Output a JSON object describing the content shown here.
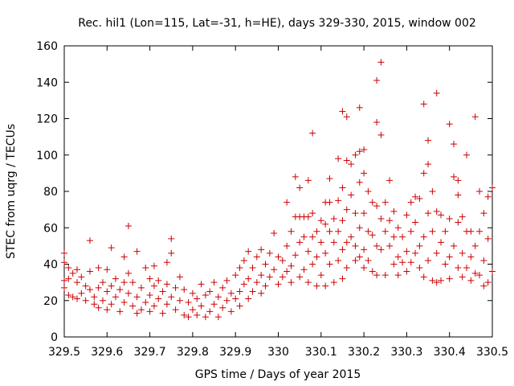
{
  "chart_data": {
    "type": "scatter",
    "title": "Rec. hil1 (Lon=115, Lat=-31, h=HE), days 329-330, 2015, window 002",
    "xlabel": "GPS time / Days of year 2015",
    "ylabel": "STEC from uqrg / TECUs",
    "xlim": [
      329.5,
      330.5
    ],
    "ylim": [
      0,
      160
    ],
    "xticks": [
      "329.5",
      "329.6",
      "329.7",
      "329.8",
      "329.9",
      "330",
      "330.1",
      "330.2",
      "330.3",
      "330.4",
      "330.5"
    ],
    "yticks": [
      "0",
      "20",
      "40",
      "60",
      "80",
      "100",
      "120",
      "140",
      "160"
    ],
    "grid": false,
    "legend": "none",
    "marker": "plus",
    "color": "#cc0000",
    "series": [
      {
        "points": [
          [
            329.5,
            46
          ],
          [
            329.5,
            41
          ],
          [
            329.5,
            31
          ],
          [
            329.5,
            27
          ],
          [
            329.51,
            38
          ],
          [
            329.51,
            32
          ],
          [
            329.51,
            23
          ],
          [
            329.52,
            35
          ],
          [
            329.52,
            22
          ],
          [
            329.53,
            37
          ],
          [
            329.53,
            30
          ],
          [
            329.53,
            21
          ],
          [
            329.54,
            33
          ],
          [
            329.54,
            24
          ],
          [
            329.55,
            28
          ],
          [
            329.55,
            20
          ],
          [
            329.56,
            53
          ],
          [
            329.56,
            36
          ],
          [
            329.56,
            26
          ],
          [
            329.57,
            22
          ],
          [
            329.57,
            18
          ],
          [
            329.58,
            38
          ],
          [
            329.58,
            27
          ],
          [
            329.58,
            16
          ],
          [
            329.59,
            30
          ],
          [
            329.59,
            20
          ],
          [
            329.6,
            37
          ],
          [
            329.6,
            25
          ],
          [
            329.6,
            15
          ],
          [
            329.61,
            49
          ],
          [
            329.61,
            28
          ],
          [
            329.61,
            18
          ],
          [
            329.62,
            32
          ],
          [
            329.62,
            22
          ],
          [
            329.63,
            26
          ],
          [
            329.63,
            14
          ],
          [
            329.64,
            44
          ],
          [
            329.64,
            30
          ],
          [
            329.64,
            19
          ],
          [
            329.65,
            61
          ],
          [
            329.65,
            35
          ],
          [
            329.65,
            24
          ],
          [
            329.66,
            30
          ],
          [
            329.66,
            17
          ],
          [
            329.67,
            47
          ],
          [
            329.67,
            22
          ],
          [
            329.67,
            13
          ],
          [
            329.68,
            27
          ],
          [
            329.68,
            15
          ],
          [
            329.69,
            38
          ],
          [
            329.69,
            19
          ],
          [
            329.7,
            32
          ],
          [
            329.7,
            23
          ],
          [
            329.7,
            14
          ],
          [
            329.71,
            39
          ],
          [
            329.71,
            28
          ],
          [
            329.71,
            17
          ],
          [
            329.72,
            31
          ],
          [
            329.72,
            21
          ],
          [
            329.73,
            25
          ],
          [
            329.73,
            13
          ],
          [
            329.74,
            41
          ],
          [
            329.74,
            29
          ],
          [
            329.74,
            18
          ],
          [
            329.75,
            54
          ],
          [
            329.75,
            46
          ],
          [
            329.75,
            22
          ],
          [
            329.76,
            27
          ],
          [
            329.76,
            15
          ],
          [
            329.77,
            33
          ],
          [
            329.77,
            20
          ],
          [
            329.78,
            26
          ],
          [
            329.78,
            12
          ],
          [
            329.79,
            19
          ],
          [
            329.79,
            11
          ],
          [
            329.8,
            24
          ],
          [
            329.8,
            15
          ],
          [
            329.81,
            21
          ],
          [
            329.81,
            12
          ],
          [
            329.82,
            29
          ],
          [
            329.82,
            17
          ],
          [
            329.83,
            23
          ],
          [
            329.83,
            11
          ],
          [
            329.84,
            25
          ],
          [
            329.84,
            14
          ],
          [
            329.85,
            30
          ],
          [
            329.85,
            18
          ],
          [
            329.86,
            22
          ],
          [
            329.86,
            11
          ],
          [
            329.87,
            27
          ],
          [
            329.87,
            16
          ],
          [
            329.88,
            31
          ],
          [
            329.88,
            20
          ],
          [
            329.89,
            24
          ],
          [
            329.89,
            14
          ],
          [
            329.9,
            34
          ],
          [
            329.9,
            21
          ],
          [
            329.91,
            38
          ],
          [
            329.91,
            25
          ],
          [
            329.91,
            17
          ],
          [
            329.92,
            42
          ],
          [
            329.92,
            29
          ],
          [
            329.93,
            47
          ],
          [
            329.93,
            32
          ],
          [
            329.93,
            21
          ],
          [
            329.94,
            38
          ],
          [
            329.94,
            25
          ],
          [
            329.95,
            44
          ],
          [
            329.95,
            30
          ],
          [
            329.96,
            48
          ],
          [
            329.96,
            34
          ],
          [
            329.96,
            24
          ],
          [
            329.97,
            40
          ],
          [
            329.97,
            28
          ],
          [
            329.98,
            46
          ],
          [
            329.98,
            33
          ],
          [
            329.99,
            57
          ],
          [
            329.99,
            37
          ],
          [
            330.0,
            44
          ],
          [
            330.0,
            29
          ],
          [
            330.01,
            42
          ],
          [
            330.01,
            33
          ],
          [
            330.02,
            74
          ],
          [
            330.02,
            50
          ],
          [
            330.02,
            36
          ],
          [
            330.03,
            58
          ],
          [
            330.03,
            39
          ],
          [
            330.03,
            30
          ],
          [
            330.04,
            88
          ],
          [
            330.04,
            66
          ],
          [
            330.04,
            45
          ],
          [
            330.05,
            82
          ],
          [
            330.05,
            66
          ],
          [
            330.05,
            52
          ],
          [
            330.05,
            33
          ],
          [
            330.06,
            66
          ],
          [
            330.06,
            55
          ],
          [
            330.06,
            37
          ],
          [
            330.07,
            86
          ],
          [
            330.07,
            66
          ],
          [
            330.07,
            47
          ],
          [
            330.07,
            30
          ],
          [
            330.08,
            112
          ],
          [
            330.08,
            68
          ],
          [
            330.08,
            55
          ],
          [
            330.08,
            40
          ],
          [
            330.09,
            58
          ],
          [
            330.09,
            44
          ],
          [
            330.09,
            28
          ],
          [
            330.1,
            64
          ],
          [
            330.1,
            52
          ],
          [
            330.1,
            34
          ],
          [
            330.11,
            74
          ],
          [
            330.11,
            62
          ],
          [
            330.11,
            46
          ],
          [
            330.11,
            28
          ],
          [
            330.12,
            87
          ],
          [
            330.12,
            74
          ],
          [
            330.12,
            58
          ],
          [
            330.12,
            40
          ],
          [
            330.13,
            65
          ],
          [
            330.13,
            52
          ],
          [
            330.13,
            30
          ],
          [
            330.14,
            98
          ],
          [
            330.14,
            75
          ],
          [
            330.14,
            58
          ],
          [
            330.14,
            42
          ],
          [
            330.15,
            124
          ],
          [
            330.15,
            82
          ],
          [
            330.15,
            64
          ],
          [
            330.15,
            48
          ],
          [
            330.15,
            32
          ],
          [
            330.16,
            121
          ],
          [
            330.16,
            97
          ],
          [
            330.16,
            70
          ],
          [
            330.16,
            52
          ],
          [
            330.16,
            38
          ],
          [
            330.17,
            95
          ],
          [
            330.17,
            78
          ],
          [
            330.17,
            55
          ],
          [
            330.18,
            100
          ],
          [
            330.18,
            68
          ],
          [
            330.18,
            50
          ],
          [
            330.18,
            42
          ],
          [
            330.19,
            126
          ],
          [
            330.19,
            102
          ],
          [
            330.19,
            85
          ],
          [
            330.19,
            60
          ],
          [
            330.19,
            44
          ],
          [
            330.2,
            103
          ],
          [
            330.2,
            90
          ],
          [
            330.2,
            68
          ],
          [
            330.2,
            48
          ],
          [
            330.2,
            38
          ],
          [
            330.21,
            80
          ],
          [
            330.21,
            58
          ],
          [
            330.21,
            42
          ],
          [
            330.22,
            74
          ],
          [
            330.22,
            56
          ],
          [
            330.22,
            36
          ],
          [
            330.23,
            141
          ],
          [
            330.23,
            118
          ],
          [
            330.23,
            72
          ],
          [
            330.23,
            50
          ],
          [
            330.23,
            34
          ],
          [
            330.24,
            151
          ],
          [
            330.24,
            111
          ],
          [
            330.24,
            65
          ],
          [
            330.24,
            48
          ],
          [
            330.25,
            74
          ],
          [
            330.25,
            58
          ],
          [
            330.25,
            34
          ],
          [
            330.26,
            86
          ],
          [
            330.26,
            64
          ],
          [
            330.26,
            50
          ],
          [
            330.27,
            69
          ],
          [
            330.27,
            55
          ],
          [
            330.27,
            40
          ],
          [
            330.28,
            60
          ],
          [
            330.28,
            44
          ],
          [
            330.28,
            34
          ],
          [
            330.29,
            55
          ],
          [
            330.29,
            41
          ],
          [
            330.3,
            67
          ],
          [
            330.3,
            47
          ],
          [
            330.3,
            36
          ],
          [
            330.31,
            74
          ],
          [
            330.31,
            58
          ],
          [
            330.31,
            41
          ],
          [
            330.32,
            77
          ],
          [
            330.32,
            63
          ],
          [
            330.32,
            46
          ],
          [
            330.33,
            76
          ],
          [
            330.33,
            50
          ],
          [
            330.33,
            38
          ],
          [
            330.34,
            128
          ],
          [
            330.34,
            90
          ],
          [
            330.34,
            55
          ],
          [
            330.34,
            33
          ],
          [
            330.35,
            108
          ],
          [
            330.35,
            95
          ],
          [
            330.35,
            68
          ],
          [
            330.35,
            42
          ],
          [
            330.36,
            80
          ],
          [
            330.36,
            58
          ],
          [
            330.36,
            31
          ],
          [
            330.37,
            134
          ],
          [
            330.37,
            69
          ],
          [
            330.37,
            46
          ],
          [
            330.37,
            30
          ],
          [
            330.38,
            67
          ],
          [
            330.38,
            52
          ],
          [
            330.38,
            31
          ],
          [
            330.39,
            58
          ],
          [
            330.39,
            40
          ],
          [
            330.4,
            117
          ],
          [
            330.4,
            65
          ],
          [
            330.4,
            44
          ],
          [
            330.4,
            32
          ],
          [
            330.41,
            106
          ],
          [
            330.41,
            88
          ],
          [
            330.41,
            50
          ],
          [
            330.42,
            86
          ],
          [
            330.42,
            78
          ],
          [
            330.42,
            63
          ],
          [
            330.42,
            38
          ],
          [
            330.43,
            66
          ],
          [
            330.43,
            46
          ],
          [
            330.43,
            33
          ],
          [
            330.44,
            100
          ],
          [
            330.44,
            58
          ],
          [
            330.44,
            38
          ],
          [
            330.45,
            58
          ],
          [
            330.45,
            44
          ],
          [
            330.45,
            31
          ],
          [
            330.46,
            121
          ],
          [
            330.46,
            50
          ],
          [
            330.46,
            35
          ],
          [
            330.47,
            80
          ],
          [
            330.47,
            58
          ],
          [
            330.47,
            34
          ],
          [
            330.48,
            68
          ],
          [
            330.48,
            42
          ],
          [
            330.48,
            28
          ],
          [
            330.49,
            77
          ],
          [
            330.49,
            54
          ],
          [
            330.49,
            30
          ],
          [
            330.5,
            82
          ],
          [
            330.5,
            36
          ]
        ]
      }
    ]
  }
}
